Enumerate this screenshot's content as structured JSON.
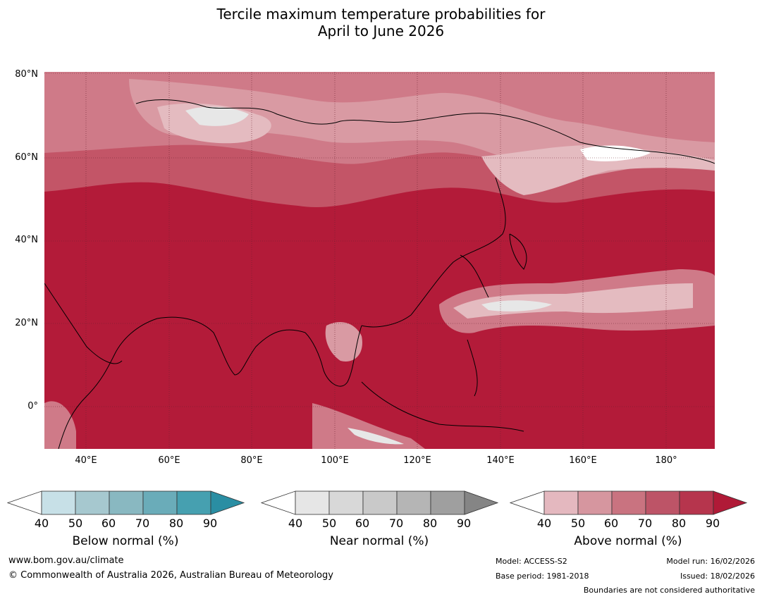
{
  "title_line1": "Tercile maximum temperature probabilities for",
  "title_line2": "April to June 2026",
  "map": {
    "lat_labels": [
      "80°N",
      "60°N",
      "40°N",
      "20°N",
      "0°"
    ],
    "lon_labels": [
      "40°E",
      "60°E",
      "80°E",
      "100°E",
      "120°E",
      "140°E",
      "160°E",
      "180°"
    ],
    "colors": {
      "above_90": "#b31b39",
      "above_80": "#b8324c",
      "above_70": "#c35567",
      "above_60": "#cf7a88",
      "above_50": "#d99aa3",
      "above_40": "#e4bbc0",
      "near": "#e7e7e7"
    }
  },
  "legends": [
    {
      "title": "Below normal (%)",
      "ticks": [
        "40",
        "50",
        "60",
        "70",
        "80",
        "90"
      ],
      "colors": [
        "#ffffff",
        "#c7e0e7",
        "#a6c8cf",
        "#89b8c1",
        "#6aacb9",
        "#46a0b0",
        "#2a8ea3"
      ]
    },
    {
      "title": "Near normal (%)",
      "ticks": [
        "40",
        "50",
        "60",
        "70",
        "80",
        "90"
      ],
      "colors": [
        "#ffffff",
        "#e6e6e6",
        "#d8d8d8",
        "#c9c9c9",
        "#b5b5b5",
        "#9f9f9f",
        "#858585"
      ]
    },
    {
      "title": "Above normal (%)",
      "ticks": [
        "40",
        "50",
        "60",
        "70",
        "80",
        "90"
      ],
      "colors": [
        "#ffffff",
        "#e4b8bf",
        "#d6969f",
        "#c97380",
        "#bd5467",
        "#b6354d",
        "#b01a37"
      ]
    }
  ],
  "footer": {
    "url": "www.bom.gov.au/climate",
    "copyright": "© Commonwealth of Australia 2026, Australian Bureau of Meteorology",
    "model": "Model: ACCESS-S2",
    "base_period": "Base period: 1981-2018",
    "model_run": "Model run: 16/02/2026",
    "issued": "Issued: 18/02/2026",
    "disclaimer": "Boundaries are not considered authoritative"
  }
}
